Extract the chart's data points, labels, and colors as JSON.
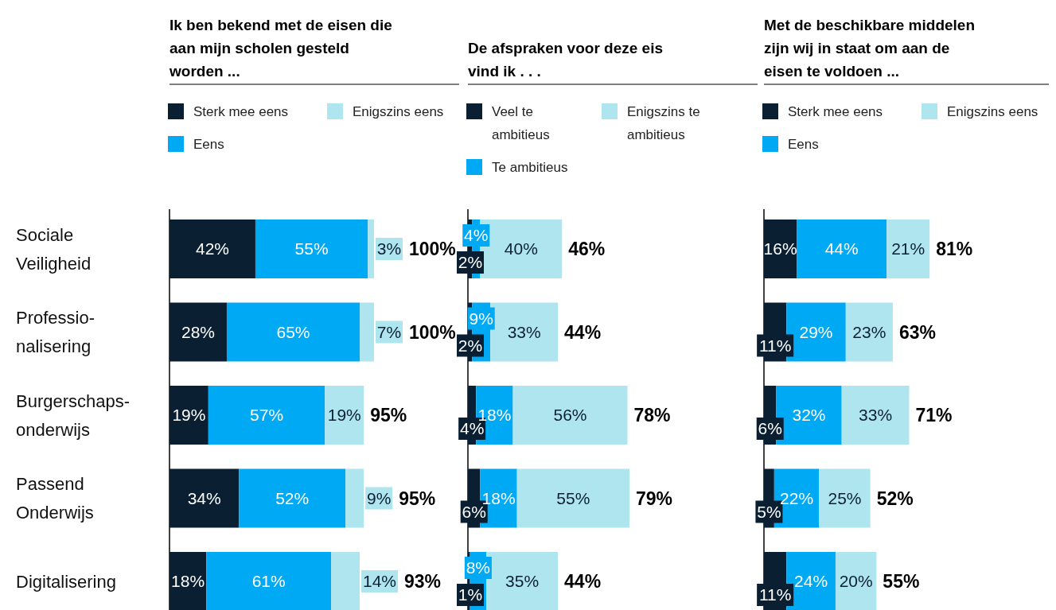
{
  "chart_data": [
    {
      "type": "bar",
      "orientation": "horizontal",
      "stacked": true,
      "title": "Ik ben bekend met de eisen die aan mijn scholen gesteld worden ...",
      "legend": "top",
      "categories": [
        "Sociale\nVeiligheid",
        "Professio-\nnalisering",
        "Burgerschaps-\nonderwijs",
        "Passend\nOnderwijs",
        "Digitalisering"
      ],
      "series": [
        {
          "name": "Sterk mee eens",
          "color": "#0b1f33",
          "values": [
            42,
            28,
            19,
            34,
            18
          ],
          "value_labels": [
            "42%",
            "28%",
            "19%",
            "34%",
            "18%"
          ]
        },
        {
          "name": "Eens",
          "color": "#00a9f4",
          "values": [
            55,
            65,
            57,
            52,
            61
          ],
          "value_labels": [
            "55%",
            "65%",
            "57%",
            "52%",
            "61%"
          ]
        },
        {
          "name": "Enigszins eens",
          "color": "#aee5ef",
          "values": [
            3,
            7,
            19,
            9,
            14
          ],
          "value_labels": [
            "3%",
            "7%",
            "19%",
            "9%",
            "14%"
          ]
        }
      ],
      "totals": [
        "100%",
        "100%",
        "95%",
        "95%",
        "93%"
      ]
    },
    {
      "type": "bar",
      "orientation": "horizontal",
      "stacked": true,
      "title": "De afspraken voor deze eis vind ik . . .",
      "legend": "top",
      "categories": [
        null,
        null,
        null,
        null,
        null
      ],
      "series": [
        {
          "name": "Veel te ambitieus",
          "color": "#0b1f33",
          "values": [
            2,
            2,
            4,
            6,
            1
          ],
          "value_labels": [
            "2%",
            "2%",
            "4%",
            "6%",
            "1%"
          ]
        },
        {
          "name": "Te ambitieus",
          "color": "#00a9f4",
          "values": [
            4,
            9,
            18,
            18,
            8
          ],
          "value_labels": [
            "4%",
            "9%",
            "18%",
            "18%",
            "8%"
          ]
        },
        {
          "name": "Enigszins te ambitieus",
          "color": "#aee5ef",
          "values": [
            40,
            33,
            56,
            55,
            35
          ],
          "value_labels": [
            "40%",
            "33%",
            "56%",
            "55%",
            "35%"
          ]
        }
      ],
      "totals": [
        "46%",
        "44%",
        "78%",
        "79%",
        "44%"
      ]
    },
    {
      "type": "bar",
      "orientation": "horizontal",
      "stacked": true,
      "title": "Met de beschikbare middelen zijn wij in staat om aan de eisen te voldoen ...",
      "legend": "top",
      "categories": [
        null,
        null,
        null,
        null,
        null
      ],
      "series": [
        {
          "name": "Sterk mee eens",
          "color": "#0b1f33",
          "values": [
            16,
            11,
            6,
            5,
            11
          ],
          "value_labels": [
            "16%",
            "11%",
            "6%",
            "5%",
            "11%"
          ]
        },
        {
          "name": "Eens",
          "color": "#00a9f4",
          "values": [
            44,
            29,
            32,
            22,
            24
          ],
          "value_labels": [
            "44%",
            "29%",
            "32%",
            "22%",
            "24%"
          ]
        },
        {
          "name": "Enigszins eens",
          "color": "#aee5ef",
          "values": [
            21,
            23,
            33,
            25,
            20
          ],
          "value_labels": [
            "21%",
            "23%",
            "33%",
            "25%",
            "20%"
          ]
        }
      ],
      "totals": [
        "81%",
        "63%",
        "71%",
        "52%",
        "55%"
      ]
    }
  ]
}
